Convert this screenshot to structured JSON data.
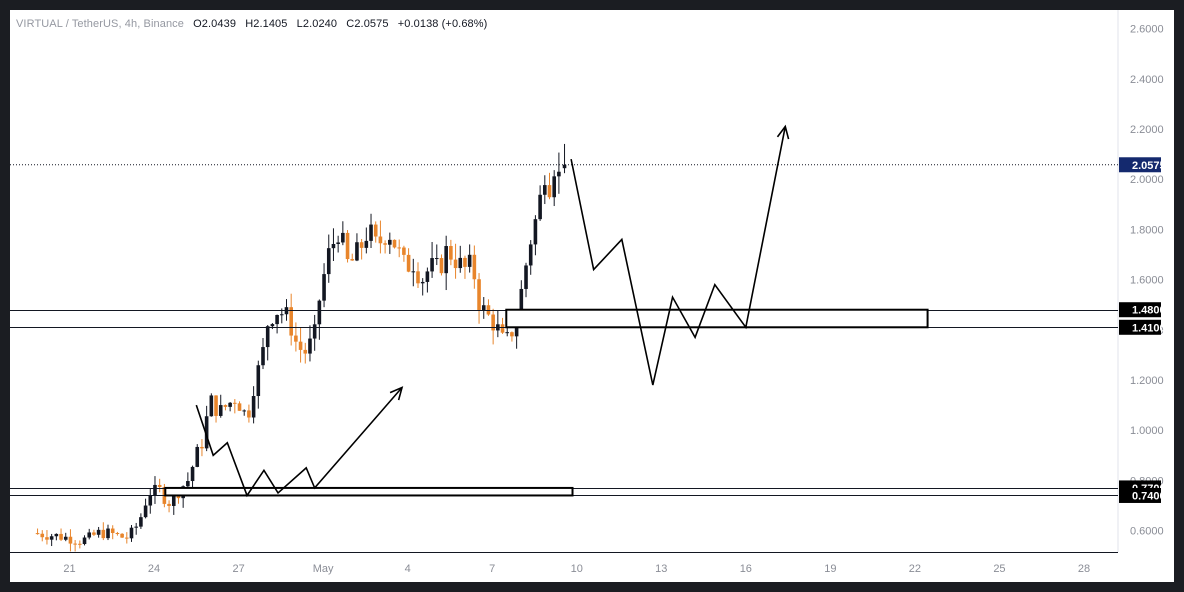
{
  "legend": {
    "symbol": "VIRTUAL / TetherUS, 4h, Binance",
    "open_label": "O",
    "open": "2.0439",
    "high_label": "H",
    "high": "2.1405",
    "low_label": "L",
    "low": "2.0240",
    "close_label": "C",
    "close": "2.0575",
    "change": "+0.0138 (+0.68%)"
  },
  "colors": {
    "up": "#131722",
    "down": "#e8852b",
    "badge_price": "#14296e",
    "badge_level": "#000000",
    "axis_text": "#8a8d96"
  },
  "chart_data": {
    "type": "candlestick",
    "title": "VIRTUAL / TetherUS, 4h, Binance",
    "ylim": [
      0.53,
      2.68
    ],
    "y_ticks": [
      0.6,
      0.8,
      1.0,
      1.2,
      1.4,
      1.6,
      1.8,
      2.0,
      2.2,
      2.4,
      2.6
    ],
    "y_tick_labels": [
      "0.6000",
      "0.8000",
      "1.0000",
      "1.2000",
      "1.4000",
      "1.6000",
      "1.8000",
      "2.0000",
      "2.2000",
      "2.4000",
      "2.6000"
    ],
    "x_range_days": [
      19.7,
      28.15
    ],
    "x_ticks": [
      {
        "day": 21,
        "label": "21"
      },
      {
        "day": 24,
        "label": "24"
      },
      {
        "day": 27,
        "label": "27"
      },
      {
        "day": 30,
        "label": "May"
      },
      {
        "day": 33,
        "label": "4"
      },
      {
        "day": 36,
        "label": "7"
      },
      {
        "day": 39,
        "label": "10"
      },
      {
        "day": 42,
        "label": "13"
      },
      {
        "day": 45,
        "label": "16"
      },
      {
        "day": 48,
        "label": "19"
      },
      {
        "day": 51,
        "label": "22"
      },
      {
        "day": 54,
        "label": "25"
      },
      {
        "day": 57,
        "label": "28"
      }
    ],
    "current_price": 2.0575,
    "current_price_label": "2.0575",
    "levels": [
      {
        "value": 1.48,
        "label": "1.4800"
      },
      {
        "value": 1.41,
        "label": "1.4100"
      },
      {
        "value": 0.77,
        "label": "0.7700"
      },
      {
        "value": 0.74,
        "label": "0.7400"
      }
    ],
    "zones": [
      {
        "top": 1.48,
        "bottom": 1.41,
        "from_day": 36.5,
        "to_day": 51.45
      },
      {
        "top": 0.77,
        "bottom": 0.74,
        "from_day": 24.4,
        "to_day": 38.85
      }
    ],
    "projection_paths": [
      [
        [
          25.5,
          1.1
        ],
        [
          26.1,
          0.9
        ],
        [
          26.6,
          0.95
        ],
        [
          27.3,
          0.74
        ],
        [
          27.9,
          0.84
        ],
        [
          28.4,
          0.75
        ],
        [
          29.4,
          0.85
        ],
        [
          29.7,
          0.77
        ],
        [
          32.8,
          1.17
        ]
      ],
      [
        [
          38.8,
          2.08
        ],
        [
          39.6,
          1.64
        ],
        [
          40.6,
          1.76
        ],
        [
          41.7,
          1.18
        ],
        [
          42.4,
          1.53
        ],
        [
          43.2,
          1.37
        ],
        [
          43.9,
          1.58
        ],
        [
          45.0,
          1.41
        ],
        [
          46.4,
          2.21
        ]
      ]
    ],
    "candle_anchors": [
      [
        19.7,
        0.59
      ],
      [
        20.5,
        0.58
      ],
      [
        21.0,
        0.57
      ],
      [
        21.4,
        0.56
      ],
      [
        21.7,
        0.57
      ],
      [
        22.0,
        0.59
      ],
      [
        22.4,
        0.59
      ],
      [
        22.7,
        0.58
      ],
      [
        23.0,
        0.57
      ],
      [
        23.3,
        0.6
      ],
      [
        23.55,
        0.66
      ],
      [
        23.8,
        0.75
      ],
      [
        24.2,
        0.76
      ],
      [
        24.5,
        0.71
      ],
      [
        24.7,
        0.73
      ],
      [
        24.95,
        0.77
      ],
      [
        25.2,
        0.8
      ],
      [
        25.5,
        0.9
      ],
      [
        25.7,
        0.95
      ],
      [
        26.0,
        1.12
      ],
      [
        26.3,
        1.07
      ],
      [
        26.6,
        1.1
      ],
      [
        26.9,
        1.13
      ],
      [
        27.2,
        1.07
      ],
      [
        27.4,
        1.08
      ],
      [
        27.6,
        1.22
      ],
      [
        27.8,
        1.26
      ],
      [
        28.0,
        1.42
      ],
      [
        28.3,
        1.48
      ],
      [
        28.5,
        1.47
      ],
      [
        28.75,
        1.45
      ],
      [
        29.1,
        1.33
      ],
      [
        29.4,
        1.31
      ],
      [
        29.7,
        1.38
      ],
      [
        29.9,
        1.55
      ],
      [
        30.2,
        1.7
      ],
      [
        30.55,
        1.8
      ],
      [
        30.9,
        1.65
      ],
      [
        31.3,
        1.72
      ],
      [
        31.6,
        1.8
      ],
      [
        31.9,
        1.73
      ],
      [
        32.3,
        1.8
      ],
      [
        32.6,
        1.73
      ],
      [
        32.9,
        1.65
      ],
      [
        33.2,
        1.67
      ],
      [
        33.5,
        1.6
      ],
      [
        33.8,
        1.65
      ],
      [
        34.1,
        1.64
      ],
      [
        34.4,
        1.72
      ],
      [
        34.7,
        1.68
      ],
      [
        35.0,
        1.64
      ],
      [
        35.3,
        1.66
      ],
      [
        35.55,
        1.5
      ],
      [
        35.8,
        1.46
      ],
      [
        36.1,
        1.42
      ],
      [
        36.3,
        1.38
      ],
      [
        36.45,
        1.33
      ],
      [
        36.6,
        1.38
      ],
      [
        36.85,
        1.42
      ],
      [
        37.1,
        1.6
      ],
      [
        37.4,
        1.78
      ],
      [
        37.65,
        1.88
      ],
      [
        37.85,
        2.04
      ],
      [
        38.05,
        1.98
      ],
      [
        38.2,
        2.06
      ],
      [
        38.4,
        2.0
      ]
    ]
  }
}
